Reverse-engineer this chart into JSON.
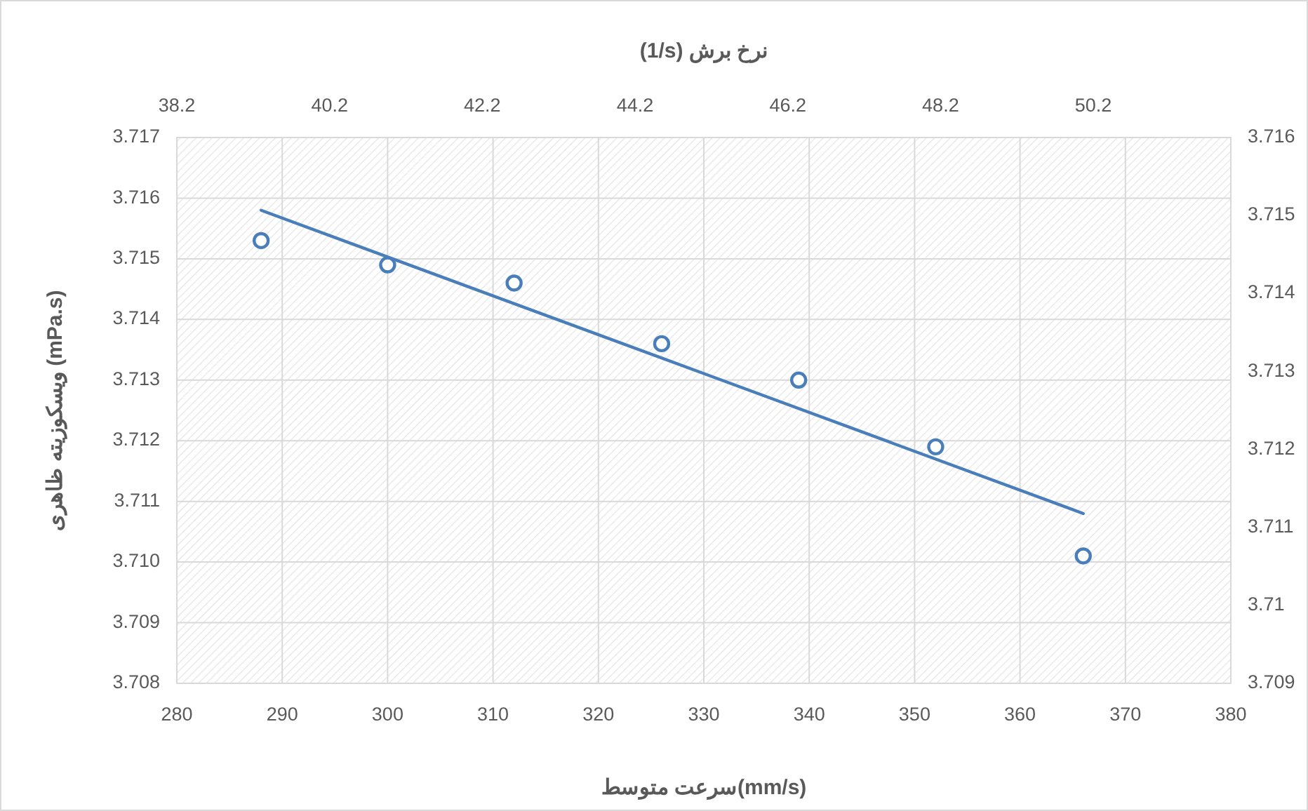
{
  "chart_data": {
    "type": "scatter",
    "x2label": "(1/s) نرخ برش",
    "xlabel": "سرعت متوسط(mm/s)",
    "ylabel": "ویسکوزیته ظاهری  (mPa.s)",
    "xlim": [
      280,
      380
    ],
    "xticks": [
      280,
      290,
      300,
      310,
      320,
      330,
      340,
      350,
      360,
      370,
      380
    ],
    "ylim": [
      3.708,
      3.717
    ],
    "yticks": [
      3.708,
      3.709,
      {
        "value": 3.71,
        "label": "3.710"
      },
      3.711,
      3.712,
      3.713,
      3.714,
      3.715,
      3.716,
      3.717
    ],
    "x2lim": [
      38.2,
      52
    ],
    "x2ticks": [
      38.2,
      40.2,
      42.2,
      44.2,
      46.2,
      48.2,
      50.2
    ],
    "y2lim": [
      3.709,
      3.716
    ],
    "y2ticks": [
      3.709,
      3.71,
      3.711,
      3.712,
      3.713,
      3.714,
      3.715,
      3.716
    ],
    "grid": true,
    "marker": "circle",
    "series": [
      {
        "color": "#4a7ebb",
        "x": [
          288,
          300,
          312,
          326,
          339,
          352,
          366
        ],
        "values": [
          3.7153,
          3.7149,
          3.7146,
          3.7136,
          3.713,
          3.7119,
          3.7101
        ]
      },
      {
        "type": "line",
        "marker": "none",
        "color": "#4a7ebb",
        "x": [
          288,
          366
        ],
        "values": [
          3.7158,
          3.7108
        ]
      }
    ]
  }
}
